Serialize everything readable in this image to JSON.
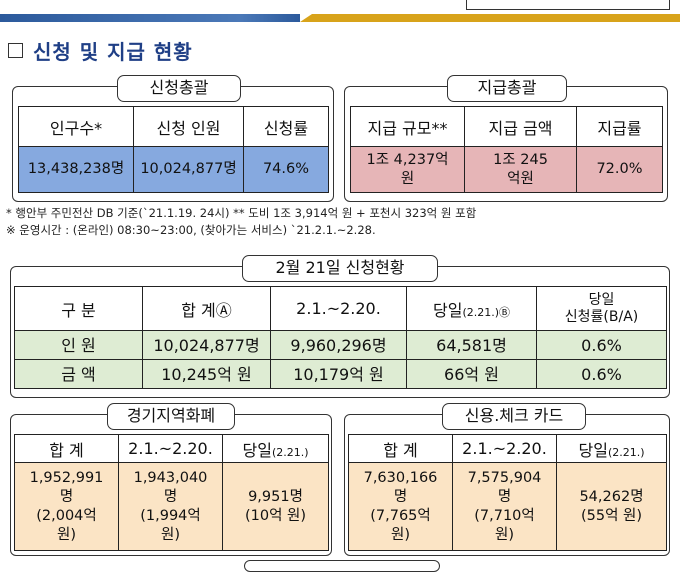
{
  "title": "신청 및 지급 현황",
  "application_summary": {
    "caption": "신청총괄",
    "headers": [
      "인구수*",
      "신청 인원",
      "신청률"
    ],
    "values": [
      "13,438,238명",
      "10,024,877명",
      "74.6%"
    ]
  },
  "payment_summary": {
    "caption": "지급총괄",
    "headers": [
      "지급 규모**",
      "지급 금액",
      "지급률"
    ],
    "values": [
      "1조 4,237억원",
      "1조 245억원",
      "72.0%"
    ]
  },
  "notes": {
    "line1": "* 행안부 주민전산 DB 기준(`21.1.19. 24시)  ** 도비 1조 3,914억 원 + 포천시 323억 원 포함",
    "line2": "※ 운영시간 : (온라인) 08:30~23:00, (찾아가는 서비스) `21.2.1.~2.28."
  },
  "daily_status": {
    "caption": "2월 21일 신청현황",
    "headers": [
      "구  분",
      "합   계Ⓐ",
      "2.1.~2.20.",
      "당일",
      "(2.21.)Ⓑ",
      "당일",
      "신청률(B/A)"
    ],
    "rows": [
      [
        "인  원",
        "10,024,877명",
        "9,960,296명",
        "64,581명",
        "0.6%"
      ],
      [
        "금  액",
        "10,245억 원",
        "10,179억 원",
        "66억 원",
        "0.6%"
      ]
    ]
  },
  "local_currency": {
    "caption": "경기지역화폐",
    "headers": [
      "합  계",
      "2.1.~2.20.",
      "당일",
      "(2.21.)"
    ],
    "total": [
      "1,952,991",
      "명",
      "(2,004억",
      "원)"
    ],
    "period": [
      "1,943,040",
      "명",
      "(1,994억",
      "원)"
    ],
    "today": [
      "9,951명",
      "(10억 원)"
    ]
  },
  "card": {
    "caption": "신용.체크 카드",
    "headers": [
      "합  계",
      "2.1.~2.20.",
      "당일",
      "(2.21.)"
    ],
    "total": [
      "7,630,166",
      "명",
      "(7,765억",
      "원)"
    ],
    "period": [
      "7,575,904",
      "명",
      "(7,710억",
      "원)"
    ],
    "today": [
      "54,262명",
      "(55억 원)"
    ]
  },
  "colors": {
    "title": "#1f3f86",
    "band_blue": "#2c5a9c",
    "band_gold": "#d8a31a",
    "cell_blue": "#86a9df",
    "cell_pink": "#e6b5b7",
    "cell_green": "#deecd3",
    "cell_peach": "#fbe4c5"
  }
}
